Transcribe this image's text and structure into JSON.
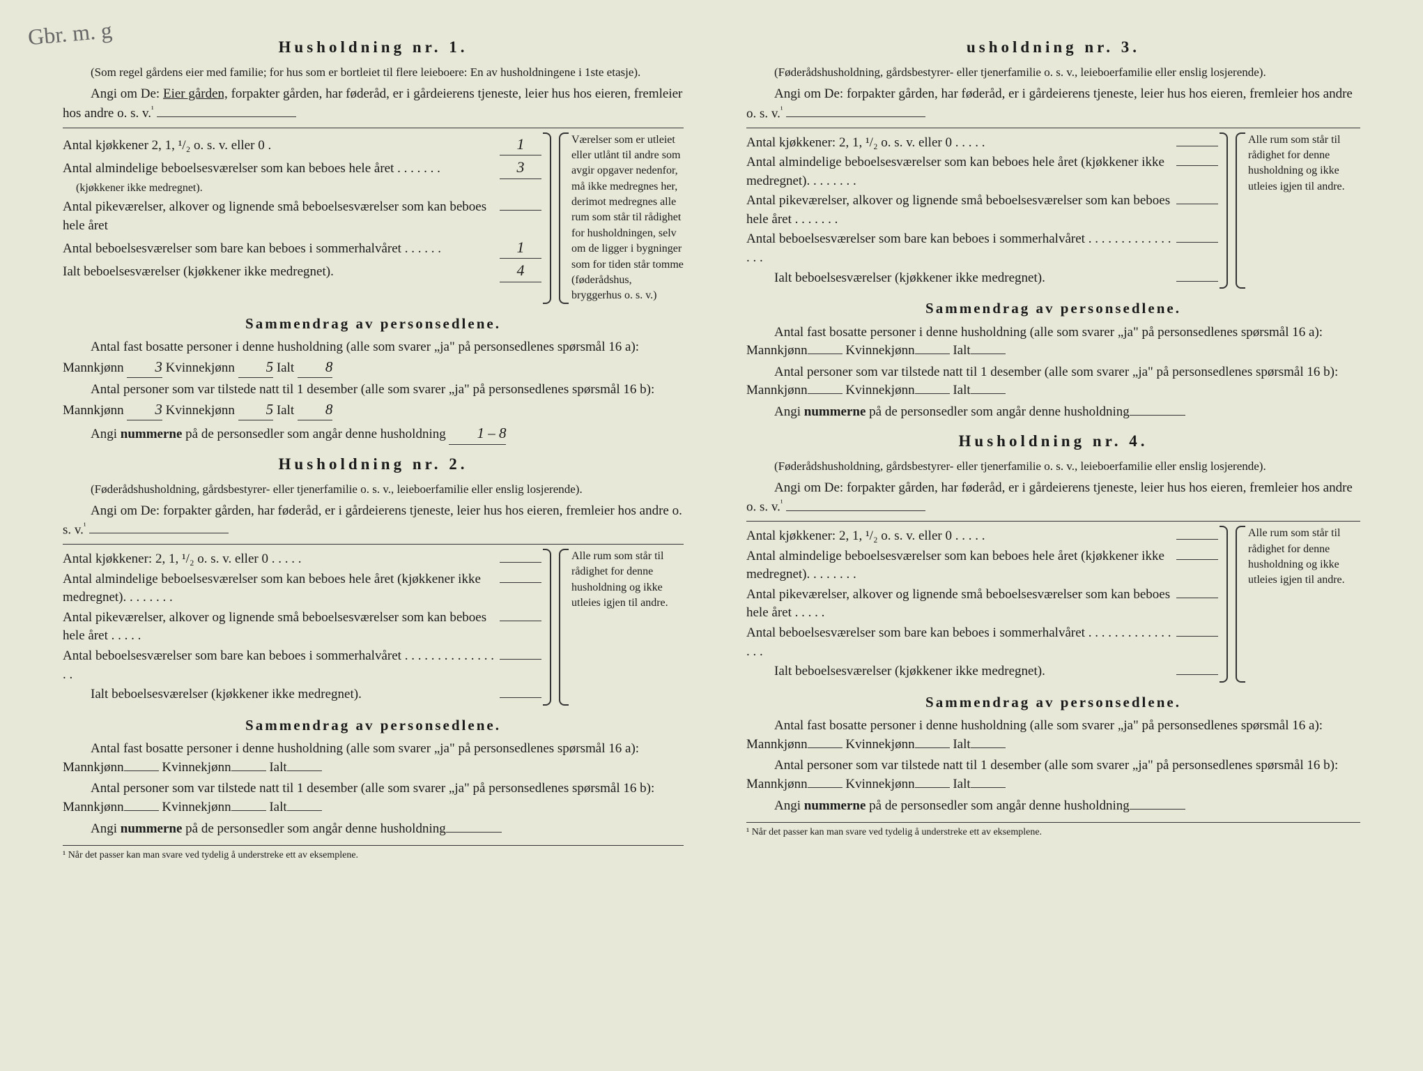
{
  "corner_note": "Gbr. m. g",
  "households": [
    {
      "title": "Husholdning nr. 1.",
      "subtitle": "(Som regel gårdens eier med familie; for hus som er bortleiet til flere leieboere: En av husholdningene i 1ste etasje).",
      "angi_prefix": "Angi om De:",
      "angi_options": "Eier gården, forpakter gården, har føderåd, er i gårdeierens tjeneste, leier hus hos eieren, fremleier hos andre o. s. v.",
      "underlined_option": "Eier gården,",
      "kjokken_label": "Antal kjøkkener 2, 1, ¹/₂ o. s. v. eller 0",
      "kjokken_val": "1",
      "vaer1_label": "Antal almindelige beboelsesværelser som kan beboes hele året",
      "vaer1_note": "(kjøkkener ikke medregnet).",
      "vaer1_val": "3",
      "vaer2_label": "Antal pikeværelser, alkover og lignende små beboelsesværelser som kan beboes hele året",
      "vaer2_val": "",
      "vaer3_label": "Antal beboelsesværelser som bare kan beboes i sommerhalvåret",
      "vaer3_val": "1",
      "ialt_label": "Ialt beboelsesværelser (kjøkkener ikke medregnet).",
      "ialt_val": "4",
      "side_note": "Værelser som er utleiet eller utlånt til andre som avgir opgaver nedenfor, må ikke medregnes her, derimot medregnes alle rum som står til rådighet for husholdningen, selv om de ligger i bygninger som for tiden står tomme (føderådshus, bryggerhus o. s. v.)",
      "sammendrag_title": "Sammendrag av personsedlene.",
      "s16a_text": "Antal fast bosatte personer i denne husholdning (alle som svarer „ja\" på personsedlenes spørsmål 16 a): Mannkjønn",
      "s16a_m": "3",
      "s16a_k_label": "Kvinnekjønn",
      "s16a_k": "5",
      "s16a_i_label": "Ialt",
      "s16a_i": "8",
      "s16b_text": "Antal personer som var tilstede natt til 1 desember (alle som svarer „ja\" på personsedlenes spørsmål 16 b): Mannkjønn",
      "s16b_m": "3",
      "s16b_k": "5",
      "s16b_i": "8",
      "nummer_text": "Angi nummerne på de personsedler som angår denne husholdning",
      "nummer_val": "1 – 8"
    },
    {
      "title": "Husholdning nr. 2.",
      "subtitle": "(Føderådshusholdning, gårdsbestyrer- eller tjenerfamilie o. s. v., leieboerfamilie eller enslig losjerende).",
      "angi_prefix": "Angi om De:",
      "angi_rest": "forpakter gården, har føderåd, er i gårdeierens tjeneste, leier hus hos eieren, fremleier hos andre o. s. v.",
      "kjokken_label": "Antal kjøkkener: 2, 1, ¹/₂ o. s. v. eller 0",
      "vaer1_label": "Antal almindelige beboelsesværelser som kan beboes hele året (kjøkkener ikke medregnet).",
      "vaer2_label": "Antal pikeværelser, alkover og lignende små beboelsesværelser som kan beboes hele året",
      "vaer3_label": "Antal beboelsesværelser som bare kan beboes i sommerhalvåret",
      "ialt_label": "Ialt beboelsesværelser (kjøkkener ikke medregnet).",
      "side_note": "Alle rum som står til rådighet for denne husholdning og ikke utleies igjen til andre.",
      "sammendrag_title": "Sammendrag av personsedlene.",
      "nummer_text": "Angi nummerne på de personsedler som angår denne husholdning",
      "footnote": "¹ Når det passer kan man svare ved tydelig å understreke ett av eksemplene."
    },
    {
      "title": "usholdning nr. 3.",
      "subtitle": "(Føderådshusholdning, gårdsbestyrer- eller tjenerfamilie o. s. v., leieboerfamilie eller enslig losjerende).",
      "angi_prefix": "Angi om De:",
      "angi_rest": "forpakter gården, har føderåd, er i gårdeierens tjeneste, leier hus hos eieren, fremleier hos andre o. s. v.",
      "kjokken_label": "Antal kjøkkener: 2, 1, ¹/₂ o. s. v. eller 0",
      "vaer1_label": "Antal almindelige beboelsesværelser som kan beboes hele året (kjøkkener ikke medregnet).",
      "vaer2_label": "Antal pikeværelser, alkover og lignende små beboelsesværelser som kan beboes hele året",
      "vaer3_label": "Antal beboelsesværelser som bare kan beboes i sommerhalvåret",
      "ialt_label": "Ialt beboelsesværelser (kjøkkener ikke medregnet).",
      "side_note": "Alle rum som står til rådighet for denne husholdning og ikke utleies igjen til andre.",
      "sammendrag_title": "Sammendrag av personsedlene.",
      "nummer_text": "Angi nummerne på de personsedler som angår denne husholdning"
    },
    {
      "title": "Husholdning nr. 4.",
      "subtitle": "(Føderådshusholdning, gårdsbestyrer- eller tjenerfamilie o. s. v., leieboerfamilie eller enslig losjerende).",
      "angi_prefix": "Angi om De:",
      "angi_rest": "forpakter gården, har føderåd, er i gårdeierens tjeneste, leier hus hos eieren, fremleier hos andre o. s. v.",
      "kjokken_label": "Antal kjøkkener: 2, 1, ¹/₂ o. s. v. eller 0",
      "vaer1_label": "Antal almindelige beboelsesværelser som kan beboes hele året (kjøkkener ikke medregnet).",
      "vaer2_label": "Antal pikeværelser, alkover og lignende små beboelsesværelser som kan beboes hele året",
      "vaer3_label": "Antal beboelsesværelser som bare kan beboes i sommerhalvåret",
      "ialt_label": "Ialt beboelsesværelser (kjøkkener ikke medregnet).",
      "side_note": "Alle rum som står til rådighet for denne husholdning og ikke utleies igjen til andre.",
      "sammendrag_title": "Sammendrag av personsedlene.",
      "nummer_text": "Angi nummerne på de personsedler som angår denne husholdning",
      "footnote": "¹ Når det passer kan man svare ved tydelig å understreke ett av eksemplene."
    }
  ],
  "common": {
    "s16a_text": "Antal fast bosatte personer i denne husholdning (alle som svarer „ja\" på personsedlenes spørsmål 16 a): Mannkjønn",
    "s16b_text": "Antal personer som var tilstede natt til 1 desember (alle som svarer „ja\" på personsedlenes spørsmål 16 b): Mannkjønn",
    "kvinne": "Kvinnekjønn",
    "ialt": "Ialt",
    "sup1": "¹"
  },
  "colors": {
    "paper": "#e8e8d8",
    "text": "#1a1a1a",
    "handwriting": "#3a3a3a"
  }
}
